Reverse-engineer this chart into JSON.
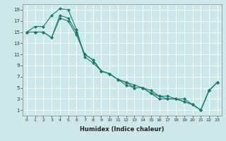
{
  "title": "",
  "xlabel": "Humidex (Indice chaleur)",
  "background_color": "#cce8e8",
  "line_color": "#1a7a6e",
  "grid_color": "#ffffff",
  "xmin": -0.5,
  "xmax": 23.5,
  "ymin": 0,
  "ymax": 20,
  "line1_x": [
    0,
    1,
    2,
    3,
    4,
    5,
    6,
    7,
    8,
    9,
    10,
    11,
    12,
    13,
    14,
    15,
    16,
    17,
    18,
    19,
    20,
    21,
    22,
    23
  ],
  "line1_y": [
    15,
    16,
    16,
    18,
    19.2,
    19,
    15.5,
    10.5,
    9.5,
    8,
    7.5,
    6.5,
    6,
    5.5,
    5,
    4.5,
    3.5,
    3,
    3,
    2.5,
    2,
    1,
    4.5,
    6
  ],
  "line2_x": [
    0,
    1,
    2,
    3,
    4,
    5,
    6,
    7,
    8,
    9,
    10,
    11,
    12,
    13,
    14,
    15,
    16,
    17,
    18,
    19,
    20,
    21,
    22,
    23
  ],
  "line2_y": [
    15,
    15,
    15,
    14,
    17.5,
    17,
    14.5,
    11,
    10,
    8,
    7.5,
    6.5,
    6,
    5,
    5,
    4,
    3.5,
    3.5,
    3,
    3,
    2,
    1,
    4.5,
    6
  ],
  "line3_x": [
    0,
    1,
    2,
    3,
    4,
    5,
    6,
    7,
    8,
    9,
    10,
    11,
    12,
    13,
    14,
    15,
    16,
    17,
    18,
    19,
    20,
    21,
    22,
    23
  ],
  "line3_y": [
    15,
    15,
    15,
    14,
    18,
    17.5,
    15,
    11,
    10,
    8,
    7.5,
    6.5,
    5.5,
    5,
    5,
    4,
    3,
    3,
    3,
    2.5,
    2,
    1,
    4.5,
    6
  ],
  "xticks": [
    0,
    1,
    2,
    3,
    4,
    5,
    6,
    7,
    8,
    9,
    10,
    11,
    12,
    13,
    14,
    15,
    16,
    17,
    18,
    19,
    20,
    21,
    22,
    23
  ],
  "yticks": [
    1,
    3,
    5,
    7,
    9,
    11,
    13,
    15,
    17,
    19
  ],
  "xtick_fontsize": 4.5,
  "ytick_fontsize": 5,
  "xlabel_fontsize": 6
}
